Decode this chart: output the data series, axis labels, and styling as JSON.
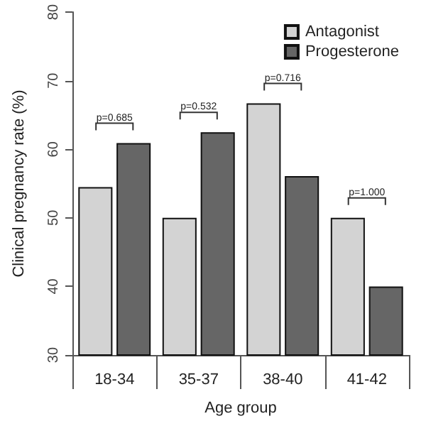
{
  "chart_data": {
    "type": "bar",
    "xlabel": "Age group",
    "ylabel": "Clinical pregnancy rate (%)",
    "categories": [
      "18-34",
      "35-37",
      "38-40",
      "41-42"
    ],
    "series": [
      {
        "name": "Antagonist",
        "color": "#d3d3d3",
        "values": [
          54.5,
          50,
          66.7,
          50
        ]
      },
      {
        "name": "Progesterone",
        "color": "#666666",
        "values": [
          60.9,
          62.5,
          56.1,
          40
        ]
      }
    ],
    "ylim": [
      30,
      80
    ],
    "yticks": [
      30,
      40,
      50,
      60,
      70,
      80
    ],
    "grid": false,
    "legend": "top right",
    "annotations": [
      "p=0.685",
      "p=0.532",
      "p=0.716",
      "p=1.000"
    ]
  }
}
